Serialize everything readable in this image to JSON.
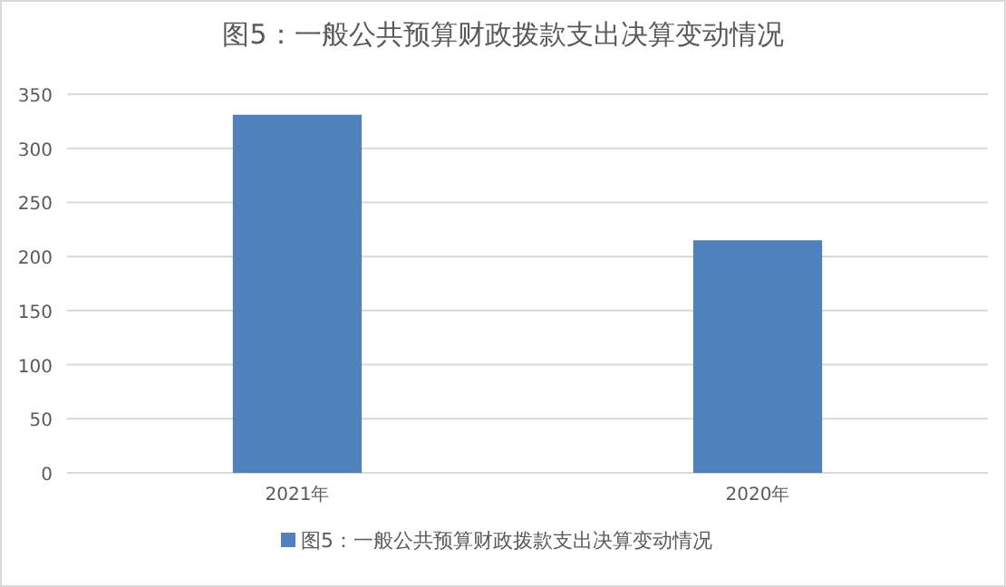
{
  "chart_data": {
    "type": "bar",
    "title": "图5：一般公共预算财政拨款支出决算变动情况",
    "categories": [
      "2021年",
      "2020年"
    ],
    "series": [
      {
        "name": "图5：一般公共预算财政拨款支出决算变动情况",
        "color": "#4f81bd",
        "values": [
          331,
          215
        ]
      }
    ],
    "ylim": [
      0,
      350
    ],
    "yticks": [
      0,
      50,
      100,
      150,
      200,
      250,
      300,
      350
    ],
    "grid": "y",
    "legend": "bottom"
  }
}
